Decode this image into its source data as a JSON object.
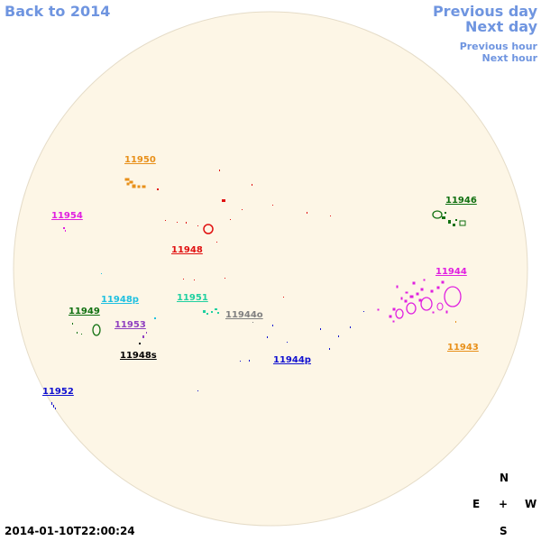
{
  "nav": {
    "back": "Back to 2014",
    "previous_day": "Previous day",
    "next_day": "Next day",
    "previous_hour": "Previous hour",
    "next_hour": "Next hour"
  },
  "regions": [
    {
      "id": "11950",
      "color": "#e8901a"
    },
    {
      "id": "11946",
      "color": "#107010"
    },
    {
      "id": "11954",
      "color": "#e020e0"
    },
    {
      "id": "11948",
      "color": "#e01010"
    },
    {
      "id": "11944",
      "color": "#e020e0"
    },
    {
      "id": "11948p",
      "color": "#20c0e0"
    },
    {
      "id": "11951",
      "color": "#20d0a0"
    },
    {
      "id": "11949",
      "color": "#107010"
    },
    {
      "id": "11944o",
      "color": "#808080"
    },
    {
      "id": "11953",
      "color": "#9040c0"
    },
    {
      "id": "11943",
      "color": "#e8901a"
    },
    {
      "id": "11948s",
      "color": "#000000"
    },
    {
      "id": "11944p",
      "color": "#1010d0"
    },
    {
      "id": "11952",
      "color": "#1010d0"
    }
  ],
  "compass": {
    "north": "N",
    "east": "E",
    "center": "+",
    "west": "W",
    "south": "S"
  },
  "timestamp": "2014-01-10T22:00:24",
  "colors": {
    "disk_fill": "#fdf6e6",
    "disk_edge": "#e5dcc8",
    "link": "#6f95e0"
  }
}
